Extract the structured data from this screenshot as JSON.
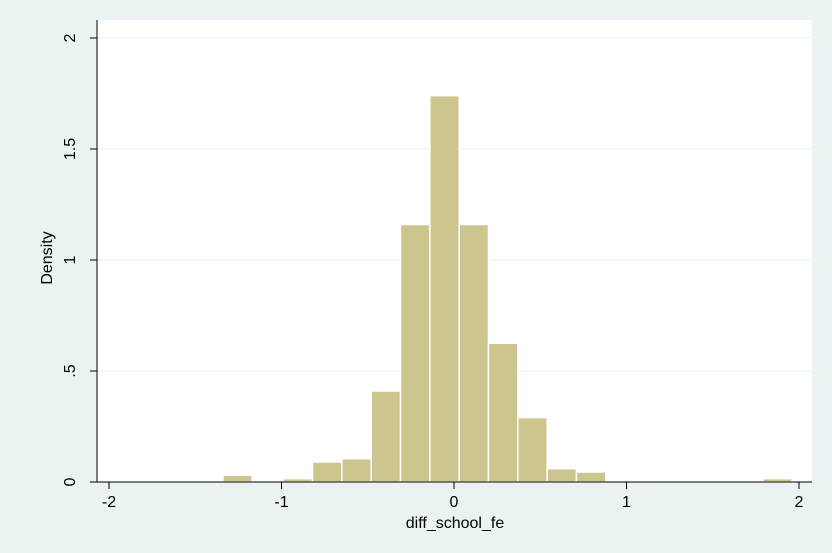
{
  "chart_data": {
    "type": "bar",
    "subtype": "histogram",
    "xlabel": "diff_school_fe",
    "ylabel": "Density",
    "xlim": [
      -2.05,
      2.05
    ],
    "ylim": [
      0,
      2.05
    ],
    "xticks": [
      {
        "value": -2,
        "label": "-2"
      },
      {
        "value": -1,
        "label": "-1"
      },
      {
        "value": 0,
        "label": "0"
      },
      {
        "value": 1,
        "label": "1"
      },
      {
        "value": 2,
        "label": "2"
      }
    ],
    "yticks": [
      {
        "value": 0,
        "label": "0"
      },
      {
        "value": 0.5,
        "label": ".5"
      },
      {
        "value": 1,
        "label": "1"
      },
      {
        "value": 1.5,
        "label": "1.5"
      },
      {
        "value": 2,
        "label": "2"
      }
    ],
    "grid": "horizontal",
    "bin_width": 0.17,
    "bins": [
      {
        "start": -1.34,
        "density": 0.03
      },
      {
        "start": -0.99,
        "density": 0.015
      },
      {
        "start": -0.82,
        "density": 0.09
      },
      {
        "start": -0.65,
        "density": 0.105
      },
      {
        "start": -0.48,
        "density": 0.41
      },
      {
        "start": -0.31,
        "density": 1.16
      },
      {
        "start": -0.14,
        "density": 1.74
      },
      {
        "start": 0.03,
        "density": 1.16
      },
      {
        "start": 0.2,
        "density": 0.625
      },
      {
        "start": 0.37,
        "density": 0.29
      },
      {
        "start": 0.54,
        "density": 0.06
      },
      {
        "start": 0.71,
        "density": 0.045
      },
      {
        "start": 1.79,
        "density": 0.015
      }
    ],
    "colors": {
      "bar_fill": "#cdc58e",
      "bar_edge": "#ffffff",
      "plot_bg": "#ffffff",
      "outer_bg": "#eaf2f3",
      "grid": "#e6eef0"
    }
  }
}
